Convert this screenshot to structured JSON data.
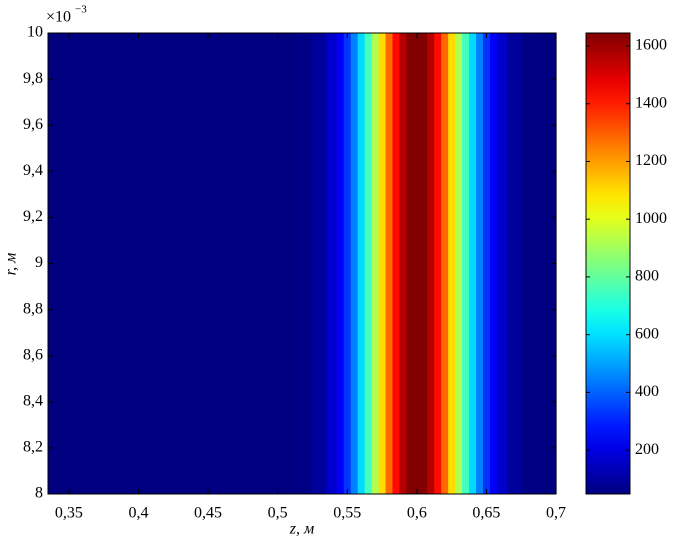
{
  "chart_data": {
    "type": "heatmap",
    "x_label": "z, м",
    "y_label": "r, м",
    "y_multiplier": "×10",
    "y_exponent": "−3",
    "x": [
      0.33,
      0.35,
      0.4,
      0.45,
      0.5,
      0.52,
      0.53,
      0.54,
      0.545,
      0.55,
      0.555,
      0.56,
      0.565,
      0.57,
      0.575,
      0.58,
      0.585,
      0.59,
      0.595,
      0.6,
      0.605,
      0.61,
      0.615,
      0.62,
      0.625,
      0.63,
      0.635,
      0.64,
      0.645,
      0.65,
      0.655,
      0.66,
      0.67,
      0.68,
      0.7
    ],
    "values": [
      50,
      50,
      50,
      50,
      50,
      60,
      90,
      170,
      240,
      330,
      450,
      590,
      750,
      920,
      1100,
      1280,
      1430,
      1560,
      1640,
      1645,
      1640,
      1560,
      1430,
      1280,
      1100,
      920,
      750,
      590,
      450,
      330,
      240,
      170,
      90,
      60,
      50
    ],
    "xlim": [
      0.335,
      0.7
    ],
    "xticks": [
      {
        "value": 0.35,
        "label": "0,35"
      },
      {
        "value": 0.4,
        "label": "0,4"
      },
      {
        "value": 0.45,
        "label": "0,45"
      },
      {
        "value": 0.5,
        "label": "0,5"
      },
      {
        "value": 0.55,
        "label": "0,55"
      },
      {
        "value": 0.6,
        "label": "0,6"
      },
      {
        "value": 0.65,
        "label": "0,65"
      },
      {
        "value": 0.7,
        "label": "0,7"
      }
    ],
    "ylim": [
      8,
      10
    ],
    "yticks": [
      8,
      {
        "value": 8.2,
        "label": "8,2"
      },
      {
        "value": 8.4,
        "label": "8,4"
      },
      {
        "value": 8.6,
        "label": "8,6"
      },
      {
        "value": 8.8,
        "label": "8,8"
      },
      9,
      {
        "value": 9.2,
        "label": "9,2"
      },
      {
        "value": 9.4,
        "label": "9,4"
      },
      {
        "value": 9.6,
        "label": "9,6"
      },
      {
        "value": 9.8,
        "label": "9,8"
      },
      10
    ],
    "clim": [
      48,
      1645
    ],
    "cticks": [
      200,
      400,
      600,
      800,
      1000,
      1200,
      1400,
      1600
    ],
    "colormap": "jet"
  }
}
